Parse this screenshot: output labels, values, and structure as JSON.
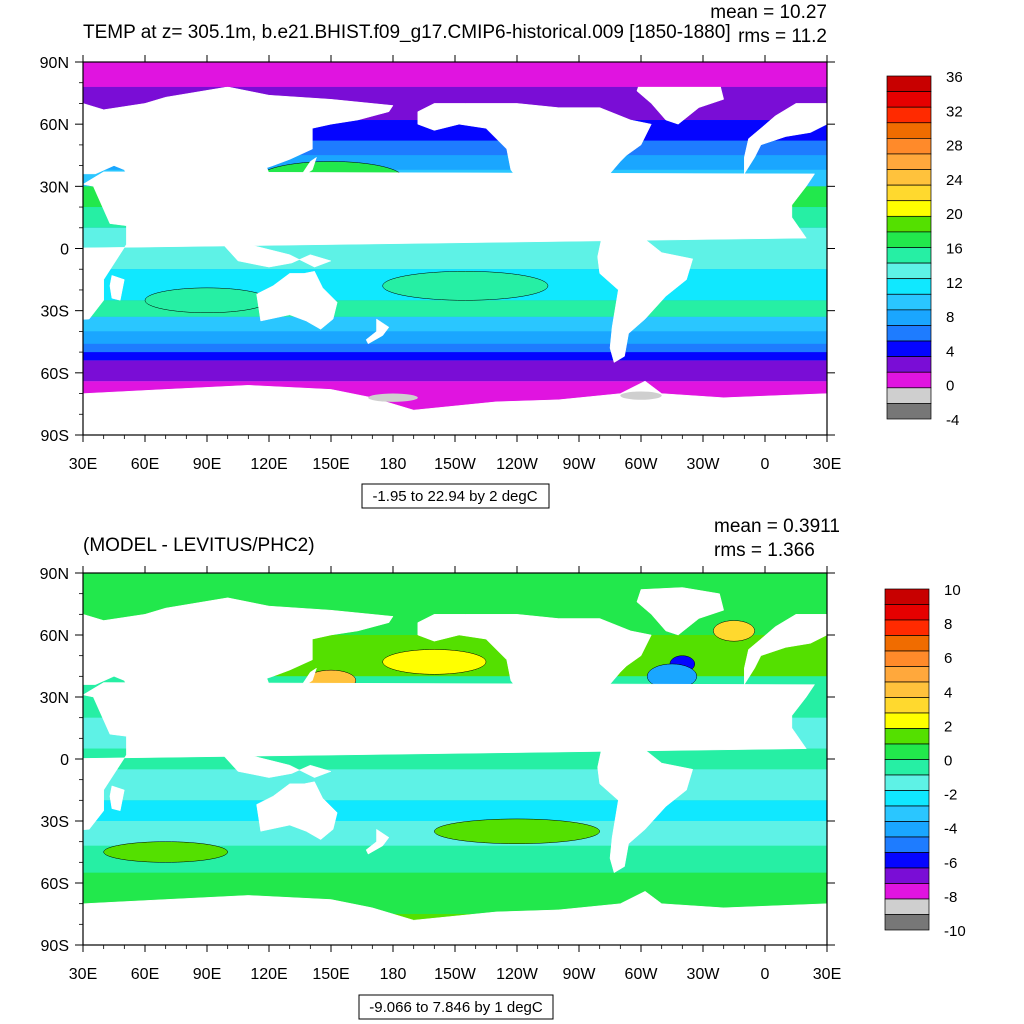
{
  "colors": {
    "ocean_deep": "#0a3fff",
    "ocean_mid": "#1f8fff",
    "ocean_light": "#5fd7ff",
    "land": "#ffffff",
    "sea_ice": "#cfcfcf"
  },
  "lon_ticks": [
    "30E",
    "60E",
    "90E",
    "120E",
    "150E",
    "180",
    "150W",
    "120W",
    "90W",
    "60W",
    "30W",
    "0",
    "30E"
  ],
  "lat_ticks": [
    "90N",
    "60N",
    "30N",
    "0",
    "30S",
    "60S",
    "90S"
  ],
  "panels": [
    {
      "id": "top",
      "title": "TEMP at z= 305.1m, b.e21.BHIST.f09_g17.CMIP6-historical.009 [1850-1880]",
      "mean_text": "mean = 10.27",
      "rms_text": "rms = 11.2",
      "range_text": "-1.95 to 22.94 by 2 degC",
      "colorbar": {
        "labels": [
          "36",
          "32",
          "28",
          "24",
          "20",
          "16",
          "12",
          "8",
          "4",
          "0",
          "-4"
        ],
        "colors": [
          "#c80000",
          "#e60000",
          "#ff2a00",
          "#f06c00",
          "#ff8a2a",
          "#ffa83c",
          "#ffc23c",
          "#ffd92e",
          "#ffff00",
          "#54e000",
          "#22e84c",
          "#26efa4",
          "#5ef2e6",
          "#10e8ff",
          "#2ac6ff",
          "#1aa6ff",
          "#1e7cff",
          "#0505ff",
          "#7a0dd6",
          "#e014e0",
          "#cfcfcf",
          "#777777"
        ]
      },
      "field_type": "temperature"
    },
    {
      "id": "bottom",
      "title": "(MODEL - LEVITUS/PHC2)",
      "mean_text": "mean = 0.3911",
      "rms_text": "rms = 1.366",
      "range_text": "-9.066 to 7.846 by 1 degC",
      "colorbar": {
        "labels": [
          "10",
          "8",
          "6",
          "4",
          "2",
          "0",
          "-2",
          "-4",
          "-6",
          "-8",
          "-10"
        ],
        "colors": [
          "#c80000",
          "#e60000",
          "#ff2a00",
          "#f06c00",
          "#ff8a2a",
          "#ffa83c",
          "#ffc23c",
          "#ffd92e",
          "#ffff00",
          "#54e000",
          "#22e84c",
          "#26efa4",
          "#5ef2e6",
          "#10e8ff",
          "#2ac6ff",
          "#1aa6ff",
          "#1e7cff",
          "#0505ff",
          "#7a0dd6",
          "#e014e0",
          "#cfcfcf",
          "#777777"
        ]
      },
      "field_type": "difference"
    }
  ]
}
